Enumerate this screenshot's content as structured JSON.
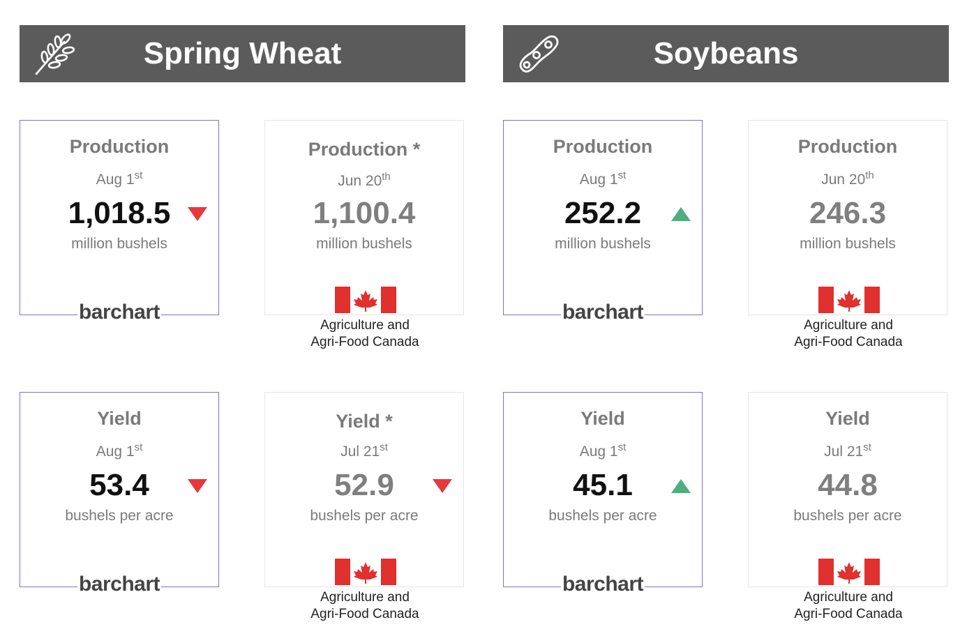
{
  "sections": [
    {
      "title": "Spring Wheat",
      "icon": "wheat-icon",
      "production": {
        "barchart": {
          "title": "Production",
          "date": "Aug 1",
          "date_sup": "st",
          "value": "1,018.5",
          "unit": "million bushels",
          "trend": "down",
          "logo": "barchart"
        },
        "canada": {
          "title": "Production *",
          "date": "Jun 20",
          "date_sup": "th",
          "value": "1,100.4",
          "unit": "million bushels",
          "source_line1": "Agriculture and",
          "source_line2": "Agri-Food Canada"
        }
      },
      "yield": {
        "barchart": {
          "title": "Yield",
          "date": "Aug 1",
          "date_sup": "st",
          "value": "53.4",
          "unit": "bushels per acre",
          "trend": "down",
          "logo": "barchart"
        },
        "canada": {
          "title": "Yield *",
          "date": "Jul 21",
          "date_sup": "st",
          "value": "52.9",
          "unit": "bushels per acre",
          "trend": "down",
          "source_line1": "Agriculture and",
          "source_line2": "Agri-Food Canada"
        }
      }
    },
    {
      "title": "Soybeans",
      "icon": "soybean-icon",
      "production": {
        "barchart": {
          "title": "Production",
          "date": "Aug 1",
          "date_sup": "st",
          "value": "252.2",
          "unit": "million bushels",
          "trend": "up",
          "logo": "barchart"
        },
        "canada": {
          "title": "Production",
          "date": "Jun 20",
          "date_sup": "th",
          "value": "246.3",
          "unit": "million bushels",
          "source_line1": "Agriculture and",
          "source_line2": "Agri-Food Canada"
        }
      },
      "yield": {
        "barchart": {
          "title": "Yield",
          "date": "Aug 1",
          "date_sup": "st",
          "value": "45.1",
          "unit": "bushels per acre",
          "trend": "up",
          "logo": "barchart"
        },
        "canada": {
          "title": "Yield",
          "date": "Jul 21",
          "date_sup": "st",
          "value": "44.8",
          "unit": "bushels per acre",
          "source_line1": "Agriculture and",
          "source_line2": "Agri-Food Canada"
        }
      }
    }
  ],
  "colors": {
    "header_bg": "#5b5b5b",
    "down": "#e8383d",
    "up": "#4caf7d",
    "flag_red": "#e0312f",
    "card_border": "#7e6fd6"
  }
}
